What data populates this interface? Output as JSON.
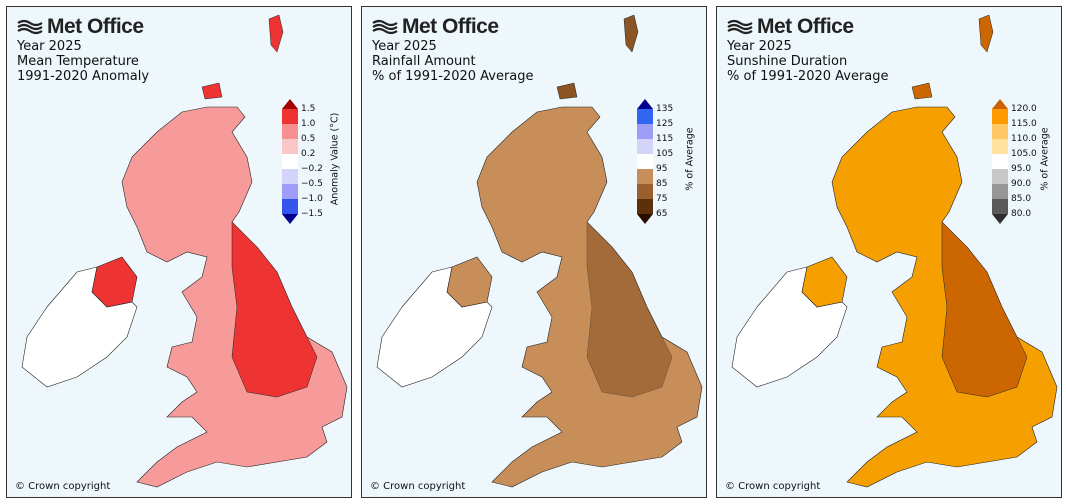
{
  "panels": [
    {
      "logo": "Met Office",
      "title_lines": [
        "Year 2025",
        "Mean Temperature",
        "1991-2020 Anomaly"
      ],
      "legend_label": "Anomaly Value (°C)",
      "ticks": [
        "1.5",
        "1.0",
        "0.5",
        "0.2",
        "−0.2",
        "−0.5",
        "−1.0",
        "−1.5"
      ],
      "band_colors": [
        "#ee3333",
        "#f79090",
        "#fbc6c6",
        "#ffffff",
        "#d4d4fa",
        "#9e9ef8",
        "#3355ee"
      ],
      "over_color": "#a50000",
      "under_color": "#00008c",
      "map_colors": {
        "base": "#f79a9a",
        "strong": "#ee3333",
        "ireland": "#ffffff"
      },
      "copyright": "© Crown copyright"
    },
    {
      "logo": "Met Office",
      "title_lines": [
        "Year 2025",
        "Rainfall Amount",
        "% of 1991-2020 Average"
      ],
      "legend_label": "% of Average",
      "ticks": [
        "135",
        "125",
        "115",
        "105",
        "95",
        "85",
        "75",
        "65"
      ],
      "band_colors": [
        "#3366f0",
        "#9e9ef8",
        "#d4d4fa",
        "#ffffff",
        "#c88e5a",
        "#9a5f2c",
        "#5c3008"
      ],
      "over_color": "#00008c",
      "under_color": "#2a0d00",
      "map_colors": {
        "base": "#c88e5a",
        "strong": "#8a5424",
        "ireland": "#ffffff"
      },
      "copyright": "© Crown copyright"
    },
    {
      "logo": "Met Office",
      "title_lines": [
        "Year 2025",
        "Sunshine Duration",
        "% of 1991-2020 Average"
      ],
      "legend_label": "% of Average",
      "ticks": [
        "120.0",
        "115.0",
        "110.0",
        "105.0",
        "95.0",
        "90.0",
        "85.0",
        "80.0"
      ],
      "band_colors": [
        "#ff9900",
        "#ffc766",
        "#ffe29e",
        "#ffffff",
        "#c8c8c8",
        "#969696",
        "#5a5a5a"
      ],
      "over_color": "#cc5f00",
      "under_color": "#2e2e2e",
      "map_colors": {
        "base": "#f5a000",
        "strong": "#cc6600",
        "ireland": "#ffffff"
      },
      "copyright": "© Crown copyright"
    }
  ]
}
